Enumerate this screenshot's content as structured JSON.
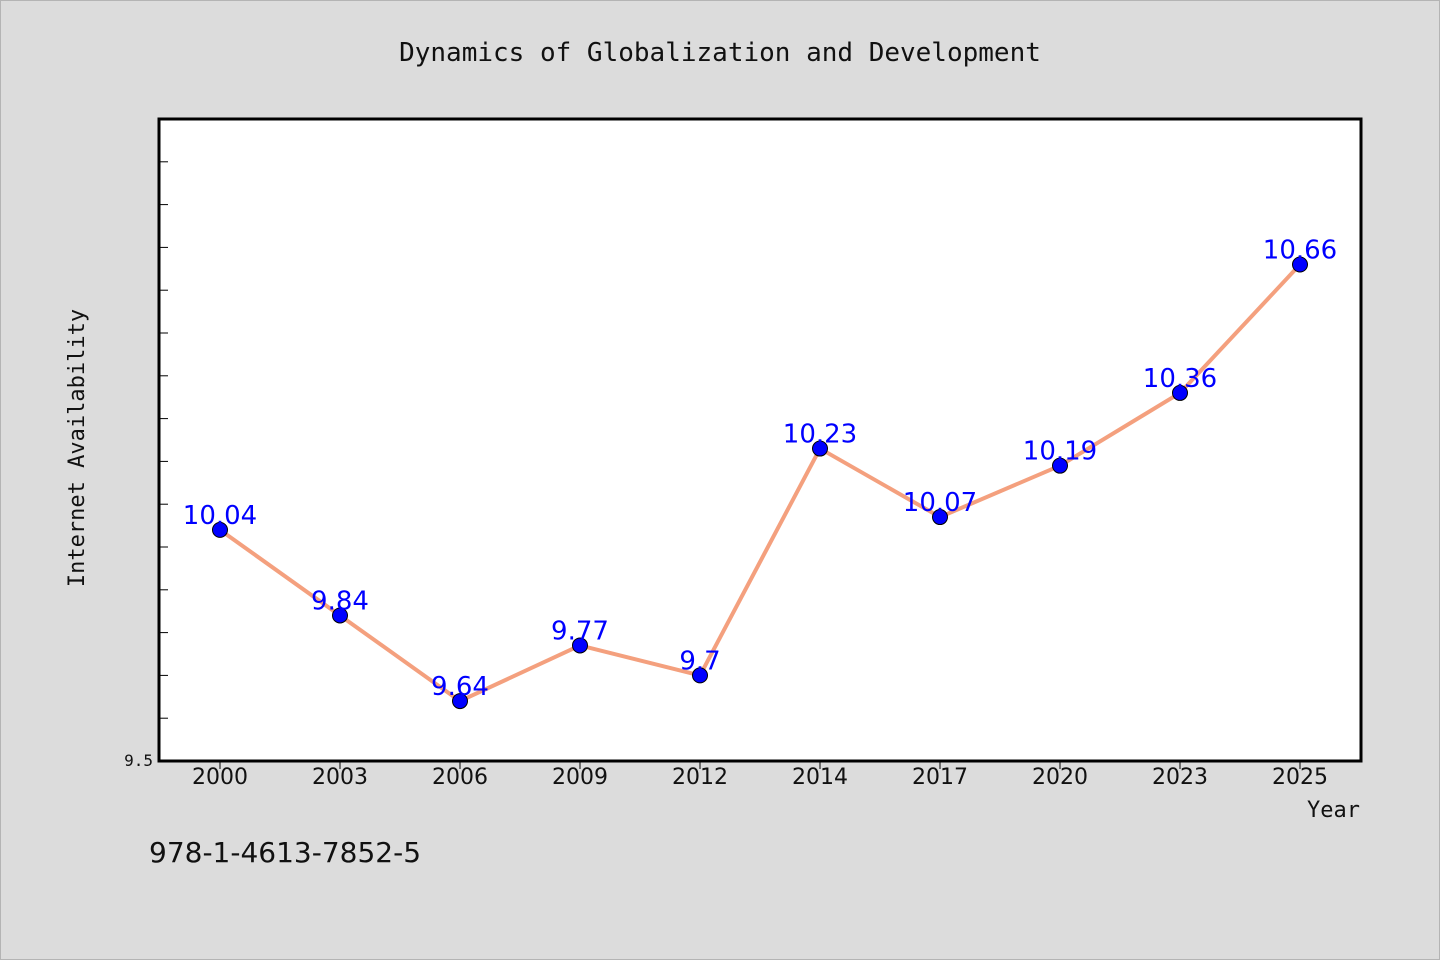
{
  "chart_data": {
    "type": "line",
    "title": "Dynamics of Globalization and Development",
    "xlabel": "Year",
    "ylabel": "Internet Availability",
    "x": [
      "2000",
      "2003",
      "2006",
      "2009",
      "2012",
      "2014",
      "2017",
      "2020",
      "2023",
      "2025"
    ],
    "series": [
      {
        "values": [
          10.04,
          9.84,
          9.64,
          9.77,
          9.7,
          10.23,
          10.07,
          10.19,
          10.36,
          10.66
        ],
        "labels": [
          "10.04",
          "9.84",
          "9.64",
          "9.77",
          "9.7",
          "10.23",
          "10.07",
          "10.19",
          "10.36",
          "10.66"
        ]
      }
    ],
    "ylim": [
      9.5,
      11.0
    ],
    "y_tick_labels": [
      "9.5"
    ],
    "grid": false,
    "line_color": "#f4a07e",
    "marker_color": "#0000ff",
    "label_color": "#0000ff"
  },
  "footer": {
    "isbn": "978-1-4613-7852-5"
  }
}
